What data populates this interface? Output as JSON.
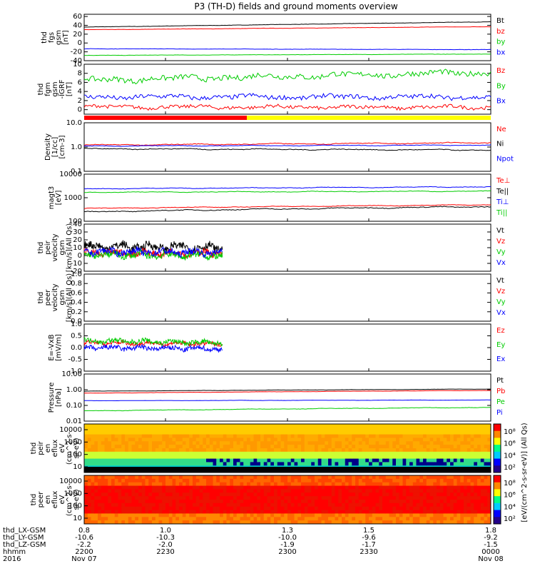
{
  "title": "P3 (TH-D) fields and ground moments overview",
  "colors": {
    "black": "#000000",
    "red": "#ff0000",
    "green": "#00cc00",
    "blue": "#0000ff",
    "yellow": "#ffff00"
  },
  "chart_data": [
    {
      "id": "fgs",
      "type": "line",
      "ylabel": [
        "thd",
        "fgs",
        "gsm",
        "[nT]"
      ],
      "ylim": [
        -40,
        65
      ],
      "yticks": [
        60,
        40,
        20,
        0,
        -20,
        -40
      ],
      "series": [
        {
          "name": "Bt",
          "color": "#000000",
          "start": 36,
          "end": 48,
          "noise": 0.3
        },
        {
          "name": "bz",
          "color": "#ff0000",
          "start": 30,
          "end": 37,
          "noise": 0.3
        },
        {
          "name": "by",
          "color": "#00cc00",
          "start": -28,
          "end": -25,
          "noise": 0.3
        },
        {
          "name": "bx",
          "color": "#0000ff",
          "start": -13,
          "end": -15,
          "noise": 0.3
        }
      ]
    },
    {
      "id": "fgm",
      "type": "line",
      "ylabel": [
        "thd",
        "fgm",
        "gsm",
        "-IGRF",
        "[nT]"
      ],
      "ylim": [
        -1,
        10
      ],
      "yticks": [
        10,
        8,
        6,
        4,
        2,
        0
      ],
      "series": [
        {
          "name": "Bz",
          "color": "#ff0000",
          "start": 0.6,
          "end": 0.5,
          "noise": 0.4
        },
        {
          "name": "By",
          "color": "#00cc00",
          "start": 6.5,
          "end": 8.2,
          "noise": 0.6
        },
        {
          "name": "Bx",
          "color": "#0000ff",
          "start": 2.8,
          "end": 2.8,
          "noise": 0.5
        }
      ]
    },
    {
      "id": "density",
      "type": "line",
      "log": true,
      "ylabel": [
        "Density",
        "[1/cc]",
        "[cm-3]"
      ],
      "ylim": [
        0.1,
        10
      ],
      "yticks": [
        10,
        1,
        0.1
      ],
      "ytick_labels": [
        "10.0",
        "1.0",
        "0.1"
      ],
      "series": [
        {
          "name": "Ne",
          "color": "#ff0000",
          "start": 1.2,
          "end": 1.5,
          "noise": 0.03
        },
        {
          "name": "Ni",
          "color": "#000000",
          "start": 0.85,
          "end": 0.75,
          "noise": 0.03
        },
        {
          "name": "Npot",
          "color": "#0000ff",
          "start": 1.1,
          "end": 1.2,
          "noise": 0.02
        }
      ]
    },
    {
      "id": "temp",
      "type": "line",
      "log": true,
      "ylabel": [
        "magt3",
        "[eV]"
      ],
      "ylim": [
        100,
        10000
      ],
      "yticks": [
        10000,
        1000,
        100
      ],
      "ytick_labels": [
        "10000",
        "1000",
        "100"
      ],
      "series": [
        {
          "name": "Te⊥",
          "color": "#ff0000",
          "start": 350,
          "end": 500,
          "noise": 0.02
        },
        {
          "name": "Te||",
          "color": "#000000",
          "start": 250,
          "end": 420,
          "noise": 0.03
        },
        {
          "name": "Ti⊥",
          "color": "#0000ff",
          "start": 2400,
          "end": 2900,
          "noise": 0.02
        },
        {
          "name": "Ti||",
          "color": "#00cc00",
          "start": 1700,
          "end": 1900,
          "noise": 0.02
        }
      ]
    },
    {
      "id": "peir",
      "type": "line",
      "ylabel": [
        "thd",
        "peir",
        "velocity",
        "gsm",
        "[km/s](All Qs)"
      ],
      "ylim": [
        -20,
        40
      ],
      "yticks": [
        40,
        30,
        20,
        10,
        0,
        -10,
        -20
      ],
      "x_range": [
        0.8,
        1.14
      ],
      "series": [
        {
          "name": "Vt",
          "color": "#000000",
          "start": 12,
          "end": 10,
          "noise": 5
        },
        {
          "name": "Vz",
          "color": "#ff0000",
          "start": 3,
          "end": 3,
          "noise": 4
        },
        {
          "name": "Vy",
          "color": "#00cc00",
          "start": 1,
          "end": 0,
          "noise": 4
        },
        {
          "name": "Vx",
          "color": "#0000ff",
          "start": 5,
          "end": 4,
          "noise": 4
        }
      ]
    },
    {
      "id": "peer",
      "type": "line",
      "ylabel": [
        "thd",
        "peer",
        "velocity",
        "gsm",
        "[km/s](All Qs)"
      ],
      "ylim": [
        0,
        1
      ],
      "yticks": [
        1.0,
        0.8,
        0.6,
        0.4,
        0.2,
        0.0
      ],
      "ytick_labels": [
        "1.0",
        "0.8",
        "0.6",
        "0.4",
        "0.2",
        "0.0"
      ],
      "series": [
        {
          "name": "Vt",
          "color": "#000000"
        },
        {
          "name": "Vz",
          "color": "#ff0000"
        },
        {
          "name": "Vy",
          "color": "#00cc00"
        },
        {
          "name": "Vx",
          "color": "#0000ff"
        }
      ]
    },
    {
      "id": "efield",
      "type": "line",
      "ylabel": [
        "E=-VxB",
        "[mV/m]"
      ],
      "ylim": [
        -1,
        1
      ],
      "yticks": [
        1.0,
        0.5,
        0.0,
        -0.5,
        -1.0
      ],
      "ytick_labels": [
        "1.0",
        "0.5",
        "0.0",
        "-0.5",
        "-1.0"
      ],
      "x_range": [
        0.8,
        1.14
      ],
      "series": [
        {
          "name": "Ez",
          "color": "#ff0000",
          "start": 0.2,
          "end": 0.15,
          "noise": 0.08
        },
        {
          "name": "Ey",
          "color": "#00cc00",
          "start": 0.3,
          "end": 0.2,
          "noise": 0.1
        },
        {
          "name": "Ex",
          "color": "#0000ff",
          "start": 0.0,
          "end": -0.05,
          "noise": 0.1
        }
      ]
    },
    {
      "id": "pressure",
      "type": "line",
      "log": true,
      "ylabel": [
        "Pressure",
        "[nPa]"
      ],
      "ylim": [
        0.01,
        10
      ],
      "yticks": [
        10,
        1,
        0.1,
        0.01
      ],
      "ytick_labels": [
        "10.00",
        "1.00",
        "0.10",
        "0.01"
      ],
      "series": [
        {
          "name": "Pt",
          "color": "#000000",
          "start": 0.8,
          "end": 1.1,
          "noise": 0.01
        },
        {
          "name": "Pb",
          "color": "#ff0000",
          "start": 0.6,
          "end": 0.9,
          "noise": 0.01
        },
        {
          "name": "Pe",
          "color": "#00cc00",
          "start": 0.045,
          "end": 0.075,
          "noise": 0.02
        },
        {
          "name": "Pi",
          "color": "#0000ff",
          "start": 0.2,
          "end": 0.22,
          "noise": 0.01
        }
      ]
    },
    {
      "id": "peir_flux",
      "type": "heatmap",
      "ylabel": [
        "thd",
        "peir",
        "en",
        "eflux",
        "eV",
        "(cm^2-s-",
        "sr-eV)"
      ],
      "yticks": [
        10000,
        1000,
        100,
        10
      ],
      "ytick_labels": [
        "10000",
        "1000",
        "100",
        "10"
      ]
    },
    {
      "id": "peer_flux",
      "type": "heatmap",
      "ylabel": [
        "thd",
        "peer",
        "en",
        "eflux",
        "eV",
        "(cm^2-s-",
        "sr-eV)"
      ],
      "yticks": [
        10000,
        1000,
        100,
        10
      ],
      "ytick_labels": [
        "10000",
        "1000",
        "100",
        "10"
      ]
    }
  ],
  "colorbar": {
    "label": "[eV/(cm^2-s-sr-eV)] (All Qs)",
    "upper_ticks": [
      "10⁸",
      "10⁶",
      "10⁴",
      "10²"
    ],
    "lower_ticks": [
      "10⁸",
      "10⁶",
      "10⁴",
      "10²"
    ]
  },
  "mode_bar": {
    "segments": [
      {
        "color": "#ff0000",
        "from": 0.8,
        "to": 1.2
      },
      {
        "color": "#ffff00",
        "from": 1.2,
        "to": 1.8
      }
    ]
  },
  "x_axis": {
    "range": [
      0.8,
      1.8
    ],
    "rows": [
      {
        "label": "thd_LX-GSM",
        "values": [
          "0.8",
          "1.0",
          "1.3",
          "1.5",
          "1.8"
        ]
      },
      {
        "label": "thd_LY-GSM",
        "values": [
          "-10.6",
          "-10.3",
          "-10.0",
          "-9.6",
          "-9.2"
        ]
      },
      {
        "label": "thd_LZ-GSM",
        "values": [
          "-2.2",
          "-2.0",
          "-1.9",
          "-1.7",
          "-1.5"
        ]
      },
      {
        "label": "hhmm",
        "values": [
          "2200",
          "2230",
          "2300",
          "2330",
          "0000"
        ]
      },
      {
        "label": "2016",
        "values": [
          "Nov 07",
          "",
          "",
          "",
          "Nov 08"
        ]
      }
    ]
  }
}
